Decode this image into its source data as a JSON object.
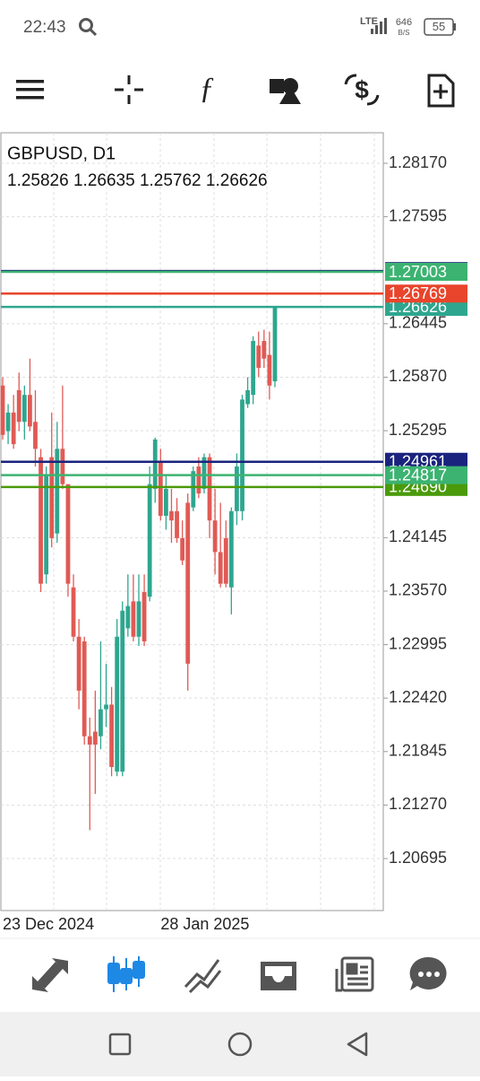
{
  "status": {
    "time": "22:43",
    "network": "LTE",
    "speed": "646",
    "speed_unit": "B/S",
    "battery": "55"
  },
  "chart_data": {
    "type": "candlestick",
    "title": "GBPUSD, D1",
    "categories": [
      "23 Dec 2024",
      null,
      null,
      null,
      null,
      null,
      null,
      null,
      null,
      null,
      null,
      null,
      null,
      null,
      null,
      null,
      null,
      null,
      null,
      null,
      null,
      null,
      null,
      null,
      null,
      null,
      null,
      null,
      null,
      "28 Jan 2025",
      null,
      null,
      null,
      null,
      null,
      null,
      null,
      null,
      null,
      null,
      null,
      null,
      null,
      null,
      null,
      null,
      null,
      null,
      null,
      null,
      null
    ],
    "ohlc": [
      [
        1.2578,
        1.2587,
        1.252,
        1.2525
      ],
      [
        1.2529,
        1.2558,
        1.2515,
        1.2549
      ],
      [
        1.2549,
        1.2568,
        1.251,
        1.2515
      ],
      [
        1.2573,
        1.2592,
        1.2529,
        1.2539
      ],
      [
        1.2539,
        1.2578,
        1.252,
        1.2568
      ],
      [
        1.2568,
        1.2607,
        1.2529,
        1.2534
      ],
      [
        1.2539,
        1.2573,
        1.2491,
        1.251
      ],
      [
        1.2501,
        1.251,
        1.2356,
        1.2365
      ],
      [
        1.2375,
        1.2491,
        1.2365,
        1.2481
      ],
      [
        1.2501,
        1.2549,
        1.2404,
        1.2414
      ],
      [
        1.2419,
        1.2539,
        1.2409,
        1.251
      ],
      [
        1.251,
        1.2578,
        1.2467,
        1.2472
      ],
      [
        1.2472,
        1.2472,
        1.2351,
        1.2365
      ],
      [
        1.2361,
        1.2375,
        1.2303,
        1.2308
      ],
      [
        1.2308,
        1.2327,
        1.223,
        1.225
      ],
      [
        1.2303,
        1.2308,
        1.2192,
        1.2201
      ],
      [
        1.2201,
        1.2221,
        1.21,
        1.2192
      ],
      [
        1.2206,
        1.225,
        1.2139,
        1.2192
      ],
      [
        1.2201,
        1.2303,
        1.2187,
        1.223
      ],
      [
        1.223,
        1.2279,
        1.2211,
        1.2235
      ],
      [
        1.2235,
        1.2254,
        1.2158,
        1.2168
      ],
      [
        1.2163,
        1.2327,
        1.2158,
        1.2308
      ],
      [
        1.2163,
        1.2346,
        1.2158,
        1.2336
      ],
      [
        1.2317,
        1.2375,
        1.2308,
        1.2341
      ],
      [
        1.2346,
        1.2375,
        1.2303,
        1.2308
      ],
      [
        1.2308,
        1.2375,
        1.2298,
        1.2346
      ],
      [
        1.2356,
        1.2375,
        1.2298,
        1.2303
      ],
      [
        1.2351,
        1.2491,
        1.2346,
        1.2472
      ],
      [
        1.2467,
        1.2522,
        1.2452,
        1.252
      ],
      [
        1.2496,
        1.251,
        1.2433,
        1.2438
      ],
      [
        1.2438,
        1.2481,
        1.2423,
        1.2467
      ],
      [
        1.2443,
        1.2467,
        1.2409,
        1.2433
      ],
      [
        1.2443,
        1.2457,
        1.2409,
        1.2414
      ],
      [
        1.2414,
        1.2433,
        1.2385,
        1.239
      ],
      [
        1.2452,
        1.2462,
        1.225,
        1.2279
      ],
      [
        1.2447,
        1.2491,
        1.2443,
        1.2486
      ],
      [
        1.2491,
        1.2501,
        1.2457,
        1.2462
      ],
      [
        1.2467,
        1.2505,
        1.2462,
        1.2501
      ],
      [
        1.2501,
        1.2505,
        1.2414,
        1.2433
      ],
      [
        1.2433,
        1.2467,
        1.2375,
        1.2399
      ],
      [
        1.2399,
        1.2452,
        1.2361,
        1.2365
      ],
      [
        1.2414,
        1.2433,
        1.2361,
        1.2365
      ],
      [
        1.2361,
        1.2447,
        1.2332,
        1.2443
      ],
      [
        1.2443,
        1.2505,
        1.2428,
        1.2491
      ],
      [
        1.2443,
        1.2568,
        1.2433,
        1.2563
      ],
      [
        1.2558,
        1.2587,
        1.2554,
        1.2573
      ],
      [
        1.2568,
        1.2631,
        1.2558,
        1.2626
      ],
      [
        1.2621,
        1.2636,
        1.2587,
        1.2597
      ],
      [
        1.2626,
        1.2638,
        1.2597,
        1.2607
      ],
      [
        1.2611,
        1.2636,
        1.2563,
        1.2578
      ],
      [
        1.25826,
        1.26635,
        1.25762,
        1.26626
      ]
    ],
    "up_color": "#2ea68f",
    "down_color": "#e05a55",
    "ylim": [
      1.20136,
      1.28498
    ],
    "yticks": [
      {
        "value": 1.2817,
        "label": "1.28170"
      },
      1.27595,
      1.26445,
      {
        "value": 1.2587,
        "label": "1.25870"
      },
      1.25295,
      1.24145,
      {
        "value": 1.2357,
        "label": "1.23570"
      },
      1.22995,
      {
        "value": 1.2242,
        "label": "1.22420"
      },
      1.21845,
      {
        "value": 1.2127,
        "label": "1.21270"
      },
      1.20695
    ],
    "grid": true,
    "hlines": [
      {
        "value": 1.27011,
        "color": "#1a237e"
      },
      {
        "value": 1.26626,
        "color": "#2ea68f"
      },
      {
        "value": 1.27003,
        "color": "#3cb371"
      },
      {
        "value": 1.26769,
        "color": "#e8452c"
      },
      {
        "value": 1.24961,
        "color": "#1a237e"
      },
      {
        "value": 1.2469,
        "label": "1.24690",
        "color": "#4a9a0a"
      },
      {
        "value": 1.24817,
        "color": "#3cb371"
      }
    ]
  }
}
